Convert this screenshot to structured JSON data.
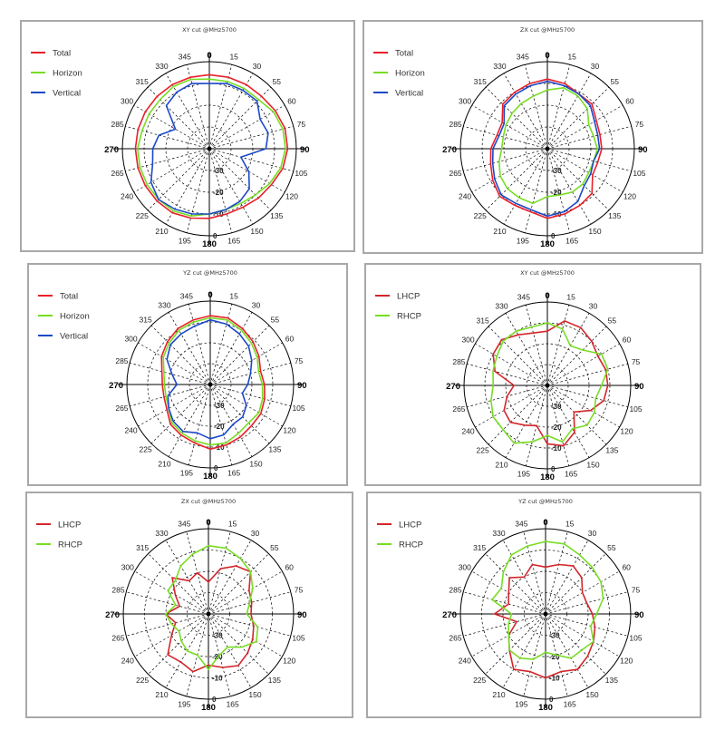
{
  "chart_data": [
    {
      "type": "polar",
      "title": "XY cut @MHz5700",
      "angle_labels": [
        "0",
        "15",
        "30",
        "55",
        "60",
        "75",
        "90",
        "105",
        "120",
        "135",
        "150",
        "165",
        "180",
        "195",
        "210",
        "225",
        "240",
        "265",
        "270",
        "285",
        "300",
        "315",
        "330",
        "345"
      ],
      "radial_labels": [
        "-30",
        "-20",
        "-10",
        "0"
      ],
      "rlim": [
        -40,
        0
      ],
      "legend": "top-left",
      "series": [
        {
          "name": "Total",
          "color": "#e8202a",
          "values": [
            -6,
            -6,
            -6,
            -6,
            -5,
            -4,
            -4,
            -5,
            -7,
            -8,
            -9,
            -9,
            -8,
            -7,
            -6,
            -6,
            -6,
            -6,
            -6,
            -6,
            -6,
            -6,
            -6,
            -6
          ]
        },
        {
          "name": "Horizon",
          "color": "#77dd22",
          "values": [
            -8,
            -8,
            -8,
            -8,
            -6,
            -5,
            -5,
            -6,
            -8,
            -10,
            -11,
            -11,
            -10,
            -8,
            -7,
            -7,
            -7,
            -7,
            -7,
            -8,
            -8,
            -8,
            -7,
            -7
          ]
        },
        {
          "name": "Vertical",
          "color": "#1c49c8",
          "values": [
            -10,
            -9,
            -9,
            -9,
            -13,
            -12,
            -14,
            -25,
            -19,
            -14,
            -12,
            -11,
            -10,
            -9,
            -8,
            -7,
            -9,
            -13,
            -14,
            -16,
            -22,
            -12,
            -10,
            -9
          ]
        }
      ]
    },
    {
      "type": "polar",
      "title": "ZX cut @MHz5700",
      "angle_labels": [
        "0",
        "15",
        "30",
        "55",
        "60",
        "75",
        "90",
        "105",
        "120",
        "135",
        "150",
        "165",
        "180",
        "195",
        "210",
        "225",
        "240",
        "265",
        "270",
        "285",
        "300",
        "315",
        "330",
        "345"
      ],
      "radial_labels": [
        "-30",
        "-20",
        "-10",
        "0"
      ],
      "rlim": [
        -40,
        0
      ],
      "legend": "top-left",
      "series": [
        {
          "name": "Total",
          "color": "#e8202a",
          "values": [
            -8,
            -9,
            -11,
            -11,
            -14,
            -15,
            -15,
            -16,
            -16,
            -11,
            -10,
            -9,
            -8,
            -10,
            -10,
            -9,
            -11,
            -13,
            -14,
            -16,
            -16,
            -11,
            -10,
            -9
          ]
        },
        {
          "name": "Horizon",
          "color": "#77dd22",
          "values": [
            -13,
            -11,
            -12,
            -14,
            -18,
            -18,
            -17,
            -18,
            -18,
            -17,
            -17,
            -18,
            -18,
            -14,
            -14,
            -14,
            -15,
            -17,
            -19,
            -19,
            -18,
            -17,
            -16,
            -15
          ]
        },
        {
          "name": "Vertical",
          "color": "#1c49c8",
          "values": [
            -9,
            -10,
            -11,
            -12,
            -15,
            -16,
            -16,
            -18,
            -17,
            -16,
            -12,
            -10,
            -9,
            -11,
            -11,
            -10,
            -12,
            -14,
            -15,
            -17,
            -17,
            -12,
            -11,
            -10
          ]
        }
      ]
    },
    {
      "type": "polar",
      "title": "YZ cut @MHz5700",
      "angle_labels": [
        "0",
        "15",
        "30",
        "55",
        "60",
        "75",
        "90",
        "105",
        "120",
        "135",
        "150",
        "165",
        "180",
        "195",
        "210",
        "225",
        "240",
        "265",
        "270",
        "285",
        "300",
        "315",
        "330",
        "345"
      ],
      "radial_labels": [
        "-30",
        "-20",
        "-10",
        "0"
      ],
      "rlim": [
        -40,
        0
      ],
      "legend": "top-left",
      "series": [
        {
          "name": "Total",
          "color": "#e8202a",
          "values": [
            -7,
            -7,
            -9,
            -11,
            -13,
            -15,
            -14,
            -13,
            -12,
            -12,
            -11,
            -10,
            -9,
            -11,
            -12,
            -13,
            -16,
            -17,
            -17,
            -16,
            -13,
            -11,
            -9,
            -8
          ]
        },
        {
          "name": "Horizon",
          "color": "#77dd22",
          "values": [
            -8,
            -8,
            -10,
            -12,
            -14,
            -16,
            -15,
            -14,
            -13,
            -14,
            -13,
            -11,
            -11,
            -12,
            -13,
            -14,
            -17,
            -18,
            -18,
            -17,
            -14,
            -12,
            -10,
            -9
          ]
        },
        {
          "name": "Vertical",
          "color": "#1c49c8",
          "values": [
            -9,
            -10,
            -12,
            -14,
            -17,
            -20,
            -22,
            -24,
            -20,
            -18,
            -18,
            -15,
            -14,
            -16,
            -14,
            -15,
            -17,
            -19,
            -24,
            -21,
            -16,
            -13,
            -12,
            -11
          ]
        }
      ]
    },
    {
      "type": "polar",
      "title": "XY cut @MHz5700",
      "angle_labels": [
        "0",
        "15",
        "30",
        "55",
        "60",
        "75",
        "90",
        "105",
        "120",
        "135",
        "150",
        "165",
        "180",
        "195",
        "210",
        "225",
        "240",
        "265",
        "270",
        "285",
        "300",
        "315",
        "330",
        "345"
      ],
      "radial_labels": [
        "-30",
        "-20",
        "-10",
        "0"
      ],
      "rlim": [
        -40,
        0
      ],
      "legend": "top-left",
      "series": [
        {
          "name": "LHCP",
          "color": "#d3262b",
          "values": [
            -14,
            -8,
            -8,
            -10,
            -12,
            -11,
            -11,
            -12,
            -16,
            -22,
            -14,
            -10,
            -12,
            -20,
            -18,
            -15,
            -16,
            -20,
            -24,
            -14,
            -10,
            -9,
            -12,
            -14
          ]
        },
        {
          "name": "RHCP",
          "color": "#77dd22",
          "values": [
            -10,
            -12,
            -18,
            -16,
            -10,
            -10,
            -14,
            -16,
            -14,
            -13,
            -16,
            -12,
            -16,
            -12,
            -8,
            -10,
            -10,
            -12,
            -14,
            -13,
            -12,
            -10,
            -10,
            -11
          ]
        }
      ]
    },
    {
      "type": "polar",
      "title": "ZX cut @MHz5700",
      "angle_labels": [
        "0",
        "15",
        "30",
        "55",
        "60",
        "75",
        "90",
        "105",
        "120",
        "135",
        "150",
        "165",
        "180",
        "195",
        "210",
        "225",
        "240",
        "265",
        "270",
        "285",
        "300",
        "315",
        "330",
        "345"
      ],
      "radial_labels": [
        "-30",
        "-20",
        "-10",
        "0"
      ],
      "rlim": [
        -40,
        0
      ],
      "legend": "top-left",
      "series": [
        {
          "name": "LHCP",
          "color": "#d3262b",
          "values": [
            -25,
            -18,
            -14,
            -12,
            -18,
            -19,
            -20,
            -18,
            -16,
            -14,
            -12,
            -14,
            -16,
            -12,
            -14,
            -13,
            -20,
            -24,
            -20,
            -26,
            -22,
            -16,
            -22,
            -20
          ]
        },
        {
          "name": "RHCP",
          "color": "#77dd22",
          "values": [
            -8,
            -8,
            -10,
            -12,
            -16,
            -20,
            -22,
            -16,
            -14,
            -18,
            -22,
            -20,
            -14,
            -20,
            -20,
            -22,
            -24,
            -22,
            -20,
            -24,
            -18,
            -18,
            -14,
            -11
          ]
        }
      ]
    },
    {
      "type": "polar",
      "title": "YZ cut @MHz5700",
      "angle_labels": [
        "0",
        "15",
        "30",
        "55",
        "60",
        "75",
        "90",
        "105",
        "120",
        "135",
        "150",
        "165",
        "180",
        "195",
        "210",
        "225",
        "240",
        "265",
        "270",
        "285",
        "300",
        "315",
        "330",
        "345"
      ],
      "radial_labels": [
        "-30",
        "-20",
        "-10",
        "0"
      ],
      "rlim": [
        -40,
        0
      ],
      "legend": "top-left",
      "series": [
        {
          "name": "LHCP",
          "color": "#d3262b",
          "values": [
            -18,
            -16,
            -14,
            -16,
            -20,
            -20,
            -18,
            -16,
            -14,
            -12,
            -10,
            -12,
            -10,
            -12,
            -10,
            -16,
            -20,
            -26,
            -16,
            -22,
            -20,
            -16,
            -20,
            -16
          ]
        },
        {
          "name": "RHCP",
          "color": "#77dd22",
          "values": [
            -6,
            -6,
            -8,
            -9,
            -10,
            -12,
            -16,
            -18,
            -14,
            -16,
            -16,
            -20,
            -22,
            -18,
            -16,
            -16,
            -20,
            -22,
            -24,
            -14,
            -16,
            -12,
            -8,
            -7
          ]
        }
      ]
    }
  ]
}
